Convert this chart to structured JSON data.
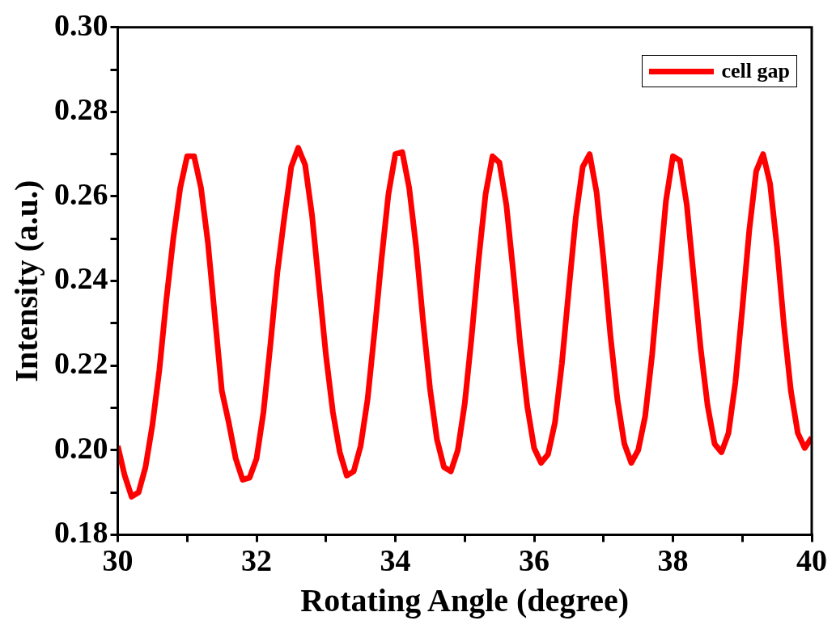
{
  "chart_data": {
    "type": "line",
    "xlabel": "Rotating Angle (degree)",
    "ylabel": "Intensity (a.u.)",
    "x": [
      30.0,
      30.1,
      30.2,
      30.3,
      30.4,
      30.5,
      30.6,
      30.7,
      30.8,
      30.9,
      31.0,
      31.1,
      31.2,
      31.3,
      31.4,
      31.5,
      31.6,
      31.7,
      31.8,
      31.9,
      32.0,
      32.1,
      32.2,
      32.3,
      32.4,
      32.5,
      32.6,
      32.7,
      32.8,
      32.9,
      33.0,
      33.1,
      33.2,
      33.3,
      33.4,
      33.5,
      33.6,
      33.7,
      33.8,
      33.9,
      34.0,
      34.1,
      34.2,
      34.3,
      34.4,
      34.5,
      34.6,
      34.7,
      34.8,
      34.9,
      35.0,
      35.1,
      35.2,
      35.3,
      35.4,
      35.5,
      35.6,
      35.7,
      35.8,
      35.9,
      36.0,
      36.1,
      36.2,
      36.3,
      36.4,
      36.5,
      36.6,
      36.7,
      36.8,
      36.9,
      37.0,
      37.1,
      37.2,
      37.3,
      37.4,
      37.5,
      37.6,
      37.7,
      37.8,
      37.9,
      38.0,
      38.1,
      38.2,
      38.3,
      38.4,
      38.5,
      38.6,
      38.7,
      38.8,
      38.9,
      39.0,
      39.1,
      39.2,
      39.3,
      39.4,
      39.5,
      39.6,
      39.7,
      39.8,
      39.9,
      40.0
    ],
    "series": [
      {
        "name": "cell gap",
        "color": "#ff0000",
        "values": [
          0.201,
          0.194,
          0.189,
          0.19,
          0.196,
          0.206,
          0.219,
          0.2355,
          0.25,
          0.262,
          0.2695,
          0.2695,
          0.262,
          0.249,
          0.2315,
          0.214,
          0.2065,
          0.198,
          0.193,
          0.1935,
          0.198,
          0.209,
          0.225,
          0.242,
          0.255,
          0.267,
          0.2715,
          0.2675,
          0.2555,
          0.239,
          0.2225,
          0.209,
          0.1995,
          0.194,
          0.195,
          0.201,
          0.212,
          0.228,
          0.245,
          0.2605,
          0.27,
          0.2705,
          0.262,
          0.248,
          0.2305,
          0.2145,
          0.2025,
          0.196,
          0.195,
          0.2,
          0.211,
          0.227,
          0.245,
          0.2605,
          0.2695,
          0.268,
          0.258,
          0.242,
          0.225,
          0.2105,
          0.2005,
          0.197,
          0.199,
          0.2065,
          0.2205,
          0.238,
          0.255,
          0.267,
          0.27,
          0.261,
          0.245,
          0.227,
          0.212,
          0.2015,
          0.197,
          0.2,
          0.208,
          0.2225,
          0.241,
          0.259,
          0.2695,
          0.2685,
          0.258,
          0.241,
          0.224,
          0.2105,
          0.2015,
          0.1995,
          0.204,
          0.216,
          0.2335,
          0.252,
          0.266,
          0.27,
          0.263,
          0.248,
          0.2295,
          0.214,
          0.204,
          0.2005,
          0.203
        ]
      }
    ],
    "xlim": [
      30,
      40
    ],
    "xticks": [
      30,
      {
        "value": 31,
        "label": null
      },
      32,
      {
        "value": 33,
        "label": null
      },
      34,
      {
        "value": 35,
        "label": null
      },
      36,
      {
        "value": 37,
        "label": null
      },
      38,
      {
        "value": 39,
        "label": null
      },
      40
    ],
    "ylim": [
      0.18,
      0.3
    ],
    "yticks": [
      {
        "value": 0.18,
        "label": "0.18"
      },
      {
        "value": 0.19,
        "label": null
      },
      {
        "value": 0.2,
        "label": "0.20"
      },
      {
        "value": 0.21,
        "label": null
      },
      {
        "value": 0.22,
        "label": "0.22"
      },
      {
        "value": 0.23,
        "label": null
      },
      {
        "value": 0.24,
        "label": "0.24"
      },
      {
        "value": 0.25,
        "label": null
      },
      {
        "value": 0.26,
        "label": "0.26"
      },
      {
        "value": 0.27,
        "label": null
      },
      {
        "value": 0.28,
        "label": "0.28"
      },
      {
        "value": 0.29,
        "label": null
      },
      {
        "value": 0.3,
        "label": "0.30"
      }
    ],
    "grid": false,
    "legend": "top right",
    "marker": "none",
    "line_style": "solid"
  }
}
